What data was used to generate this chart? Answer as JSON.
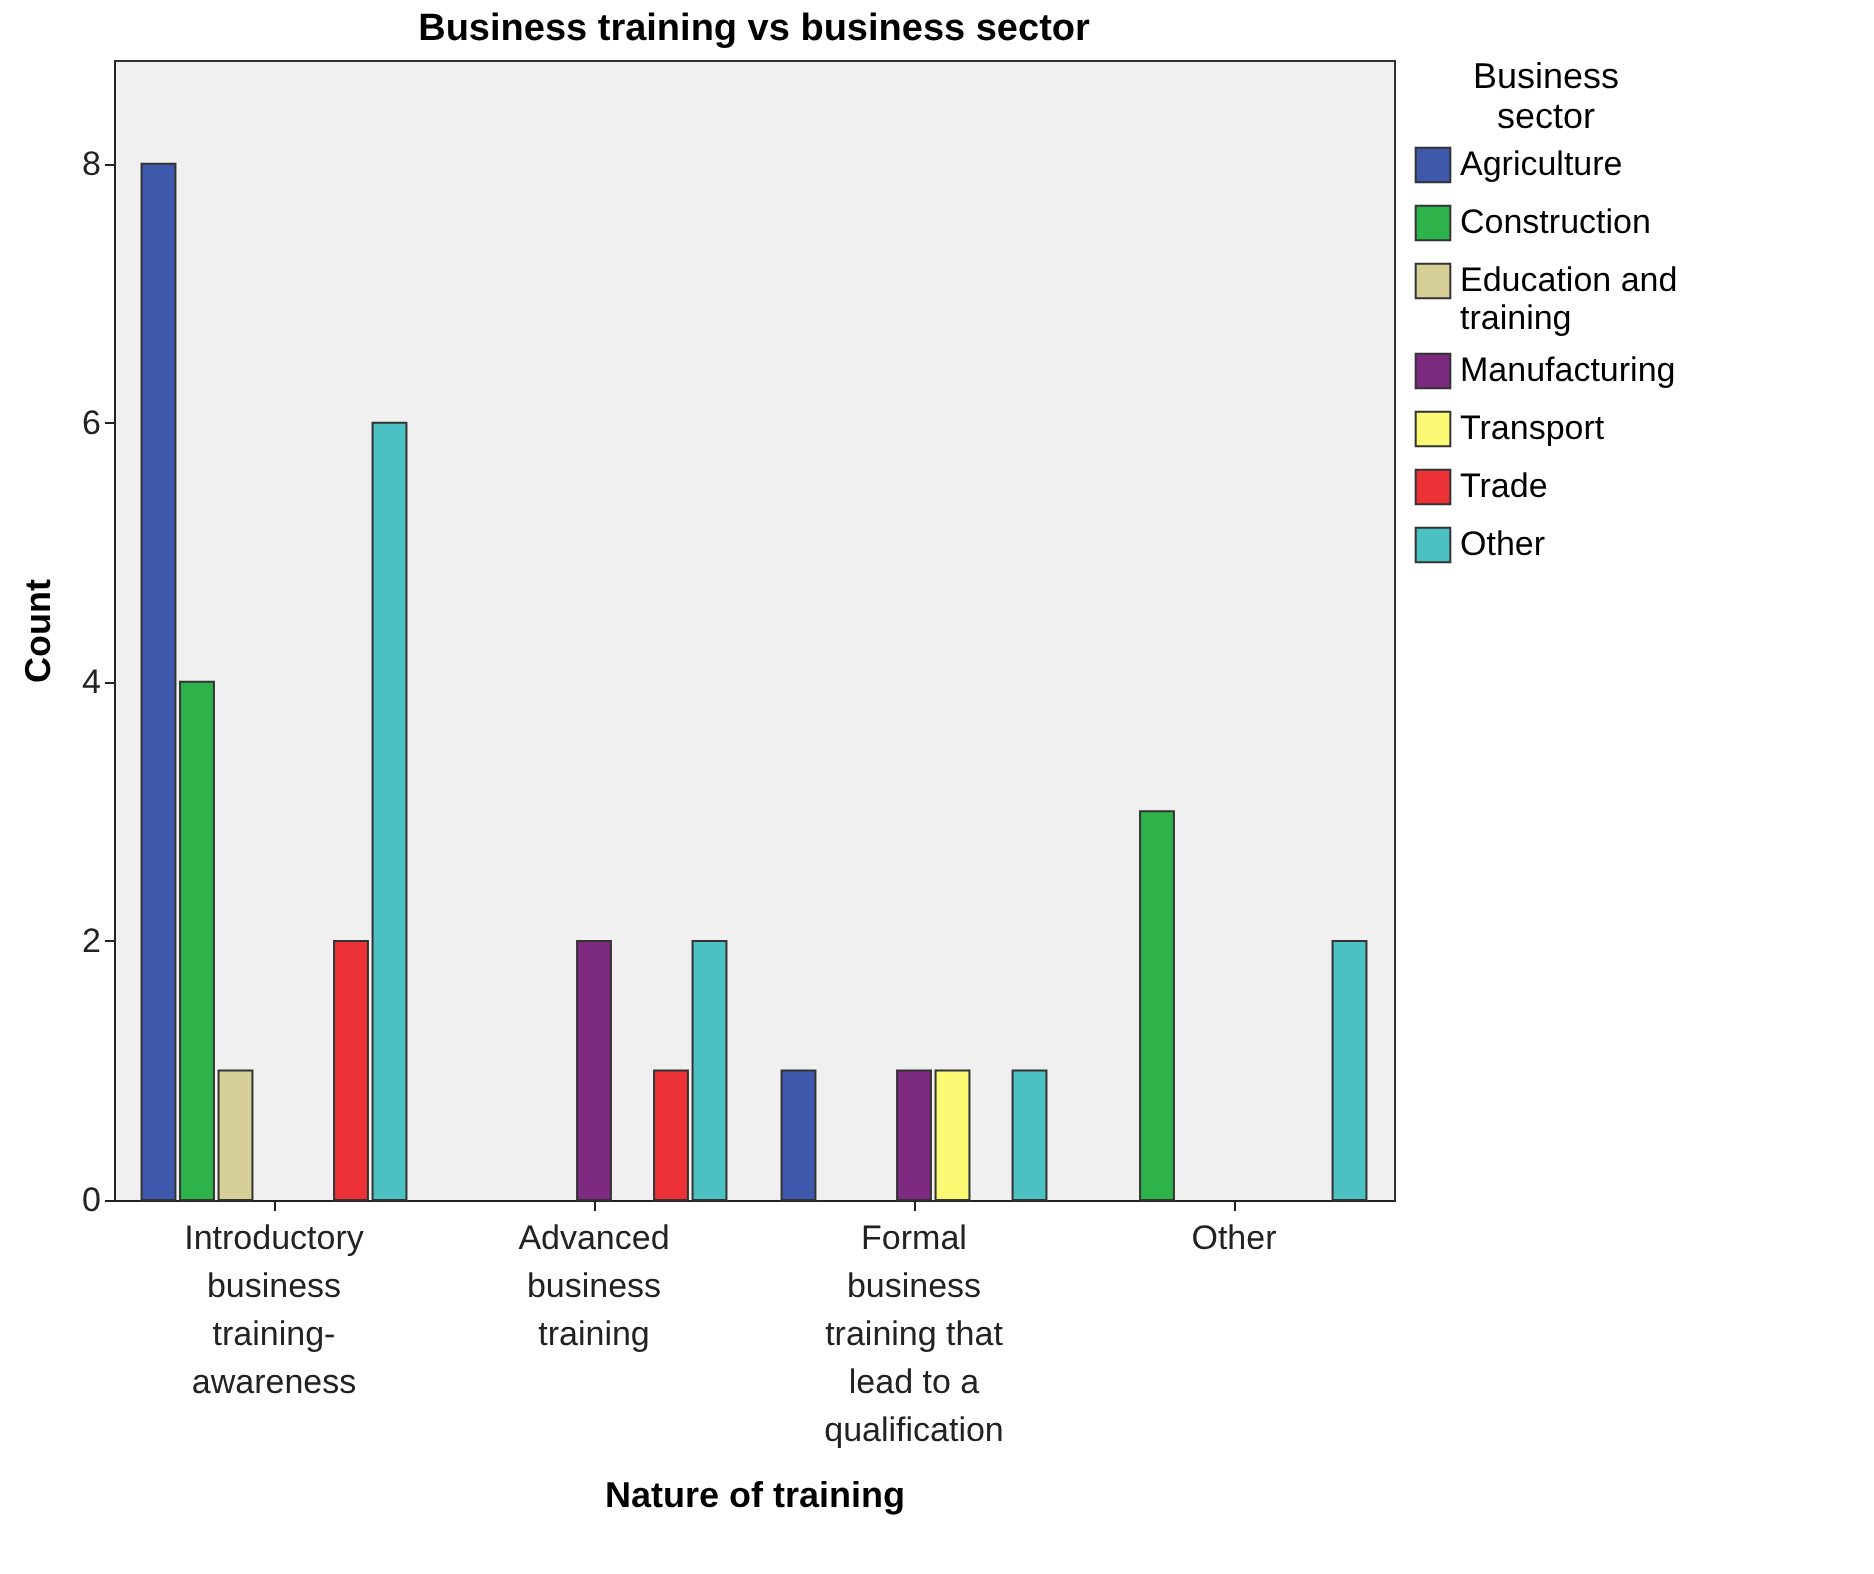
{
  "chart_data": {
    "type": "bar",
    "title": "Business training vs business sector",
    "xlabel": "Nature of training",
    "ylabel": "Count",
    "legend_title": "Business sector",
    "categories": [
      "Introductory business training-awareness",
      "Advanced business training",
      "Formal business training that lead to a qualification",
      "Other"
    ],
    "series": [
      {
        "name": "Agriculture",
        "color": "#3e58ac",
        "values": [
          8,
          null,
          1,
          null
        ]
      },
      {
        "name": "Construction",
        "color": "#2eb34a",
        "values": [
          4,
          null,
          null,
          3
        ]
      },
      {
        "name": "Education and training",
        "color": "#d6cf98",
        "values": [
          1,
          null,
          null,
          null
        ]
      },
      {
        "name": "Manufacturing",
        "color": "#7c2a80",
        "values": [
          null,
          2,
          1,
          null
        ]
      },
      {
        "name": "Transport",
        "color": "#fbf873",
        "values": [
          null,
          null,
          1,
          null
        ]
      },
      {
        "name": "Trade",
        "color": "#ec3237",
        "values": [
          2,
          1,
          null,
          null
        ]
      },
      {
        "name": "Other",
        "color": "#4bc1c3",
        "values": [
          6,
          2,
          1,
          2
        ]
      }
    ],
    "ylim": [
      0,
      8.8
    ],
    "yticks": [
      0,
      2,
      4,
      6,
      8
    ],
    "grid": false,
    "legend": "right"
  }
}
